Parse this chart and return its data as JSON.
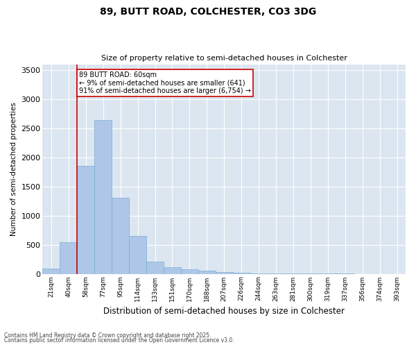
{
  "title": "89, BUTT ROAD, COLCHESTER, CO3 3DG",
  "subtitle": "Size of property relative to semi-detached houses in Colchester",
  "xlabel": "Distribution of semi-detached houses by size in Colchester",
  "ylabel": "Number of semi-detached properties",
  "categories": [
    "21sqm",
    "40sqm",
    "58sqm",
    "77sqm",
    "95sqm",
    "114sqm",
    "133sqm",
    "151sqm",
    "170sqm",
    "188sqm",
    "207sqm",
    "226sqm",
    "244sqm",
    "263sqm",
    "281sqm",
    "300sqm",
    "319sqm",
    "337sqm",
    "356sqm",
    "374sqm",
    "393sqm"
  ],
  "values": [
    90,
    540,
    1850,
    2640,
    1310,
    650,
    210,
    115,
    75,
    50,
    30,
    18,
    10,
    5,
    3,
    2,
    1,
    1,
    0,
    0,
    0
  ],
  "bar_color": "#aec6e8",
  "bar_edge_color": "#7aafd4",
  "bg_color": "#dce6f0",
  "vline_color": "#cc0000",
  "vline_x": 1.5,
  "annotation_text": "89 BUTT ROAD: 60sqm\n← 9% of semi-detached houses are smaller (641)\n91% of semi-detached houses are larger (6,754) →",
  "annotation_box_color": "#cc0000",
  "footnote1": "Contains HM Land Registry data © Crown copyright and database right 2025.",
  "footnote2": "Contains public sector information licensed under the Open Government Licence v3.0.",
  "ylim": [
    0,
    3600
  ],
  "yticks": [
    0,
    500,
    1000,
    1500,
    2000,
    2500,
    3000,
    3500
  ]
}
